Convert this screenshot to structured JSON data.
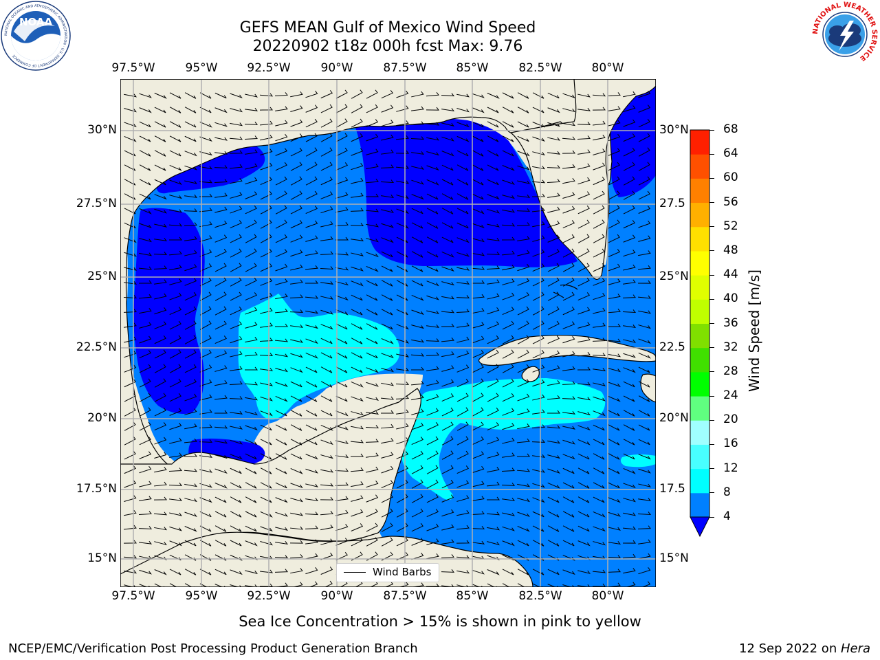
{
  "header": {
    "title_line1": "GEFS MEAN Gulf of Mexico Wind Speed",
    "title_line2": "20220902 t18z 000h fcst   Max: 9.76"
  },
  "logos": {
    "left": {
      "icon": "noaa-logo",
      "text": "NOAA",
      "ring_text": "NATIONAL OCEANIC AND ATMOSPHERIC ADMINISTRATION · U.S. DEPARTMENT OF COMMERCE"
    },
    "right": {
      "icon": "nws-logo",
      "ring_text": "NATIONAL WEATHER SERVICE"
    }
  },
  "map": {
    "lon_labels": [
      "97.5°W",
      "95°W",
      "92.5°W",
      "90°W",
      "87.5°W",
      "85°W",
      "82.5°W",
      "80°W"
    ],
    "lat_labels_left": [
      "30°N",
      "27.5°N",
      "25°N",
      "22.5°N",
      "20°N",
      "17.5°N",
      "15°N"
    ],
    "lat_labels_right": [
      "30°N",
      "27.5",
      "25°N",
      "22.5",
      "20°N",
      "17.5",
      "15°N"
    ],
    "legend_label": "Wind Barbs",
    "colors": {
      "land": "#efedde",
      "wind_lt4": "#0000ff",
      "wind_4_8": "#0080ff",
      "wind_8_12": "#00ffff",
      "wind_12_16": "#48ffff",
      "gridline": "#b0b0b0"
    }
  },
  "colorbar": {
    "label": "Wind Speed [m/s]",
    "ticks": [
      "4",
      "8",
      "12",
      "16",
      "20",
      "24",
      "28",
      "32",
      "36",
      "40",
      "44",
      "48",
      "52",
      "56",
      "60",
      "64",
      "68"
    ],
    "colors": [
      "#0080ff",
      "#00ffff",
      "#48ffff",
      "#a0ffff",
      "#60ff80",
      "#00ff00",
      "#40e000",
      "#80e000",
      "#c0ff00",
      "#e0ff00",
      "#ffff00",
      "#ffe000",
      "#ffb000",
      "#ff8000",
      "#ff5000",
      "#ff2000"
    ],
    "extend_color": "#0000ff"
  },
  "captions": {
    "sea_ice_note": "Sea Ice Concentration > 15% is shown in pink to yellow",
    "credit": "NCEP/EMC/Verification Post Processing Product Generation Branch",
    "date_prefix": "12 Sep 2022 on ",
    "machine": "Hera"
  }
}
